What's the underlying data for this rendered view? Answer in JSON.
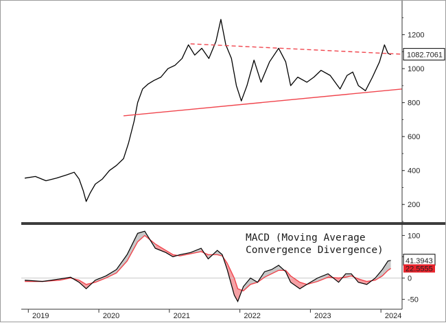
{
  "chart_data": [
    {
      "type": "line",
      "title": "",
      "xlabel": "",
      "ylabel": "",
      "x_ticks": [
        "2019",
        "2020",
        "2021",
        "2022",
        "2023",
        "2024"
      ],
      "y_ticks": [
        "200",
        "400",
        "600",
        "800",
        "1000",
        "1200"
      ],
      "ylim": [
        100,
        1380
      ],
      "last_value_label": "1082.7061",
      "grid": false,
      "series": [
        {
          "color": "#000000",
          "points": [
            [
              2018.95,
              355
            ],
            [
              2019.1,
              365
            ],
            [
              2019.25,
              340
            ],
            [
              2019.4,
              355
            ],
            [
              2019.55,
              375
            ],
            [
              2019.65,
              390
            ],
            [
              2019.72,
              350
            ],
            [
              2019.78,
              280
            ],
            [
              2019.82,
              218
            ],
            [
              2019.88,
              270
            ],
            [
              2019.95,
              320
            ],
            [
              2020.05,
              350
            ],
            [
              2020.15,
              400
            ],
            [
              2020.25,
              430
            ],
            [
              2020.35,
              470
            ],
            [
              2020.42,
              560
            ],
            [
              2020.5,
              690
            ],
            [
              2020.55,
              800
            ],
            [
              2020.62,
              880
            ],
            [
              2020.7,
              910
            ],
            [
              2020.78,
              930
            ],
            [
              2020.88,
              950
            ],
            [
              2020.98,
              1000
            ],
            [
              2021.08,
              1020
            ],
            [
              2021.18,
              1060
            ],
            [
              2021.27,
              1140
            ],
            [
              2021.36,
              1080
            ],
            [
              2021.46,
              1120
            ],
            [
              2021.56,
              1060
            ],
            [
              2021.66,
              1160
            ],
            [
              2021.73,
              1290
            ],
            [
              2021.8,
              1140
            ],
            [
              2021.88,
              1060
            ],
            [
              2021.95,
              900
            ],
            [
              2022.02,
              810
            ],
            [
              2022.1,
              900
            ],
            [
              2022.2,
              1050
            ],
            [
              2022.3,
              920
            ],
            [
              2022.42,
              1040
            ],
            [
              2022.55,
              1120
            ],
            [
              2022.65,
              1040
            ],
            [
              2022.72,
              900
            ],
            [
              2022.82,
              950
            ],
            [
              2022.95,
              920
            ],
            [
              2023.05,
              950
            ],
            [
              2023.15,
              990
            ],
            [
              2023.28,
              960
            ],
            [
              2023.42,
              880
            ],
            [
              2023.52,
              960
            ],
            [
              2023.6,
              980
            ],
            [
              2023.68,
              900
            ],
            [
              2023.78,
              870
            ],
            [
              2023.88,
              950
            ],
            [
              2023.98,
              1040
            ],
            [
              2024.05,
              1140
            ],
            [
              2024.1,
              1090
            ],
            [
              2024.14,
              1082.7
            ]
          ]
        },
        {
          "color": "#f0444c",
          "style": "solid",
          "points": [
            [
              2020.35,
              722
            ],
            [
              2024.3,
              880
            ]
          ]
        },
        {
          "color": "#f0444c",
          "style": "dashed",
          "points": [
            [
              2021.3,
              1146
            ],
            [
              2024.3,
              1085
            ]
          ]
        }
      ]
    },
    {
      "type": "line",
      "title": "",
      "annotation": "MACD (Moving Average\nConvergence Divergence)",
      "y_ticks": [
        "100",
        "50",
        "0",
        "-50"
      ],
      "ylim": [
        -70,
        120
      ],
      "last_value_labels": [
        "41.3943",
        "22.5555"
      ],
      "series": [
        {
          "color": "#000000",
          "points": [
            [
              2018.95,
              -5
            ],
            [
              2019.2,
              -8
            ],
            [
              2019.45,
              -2
            ],
            [
              2019.6,
              2
            ],
            [
              2019.72,
              -10
            ],
            [
              2019.82,
              -25
            ],
            [
              2019.95,
              -5
            ],
            [
              2020.1,
              5
            ],
            [
              2020.25,
              20
            ],
            [
              2020.4,
              55
            ],
            [
              2020.55,
              105
            ],
            [
              2020.65,
              110
            ],
            [
              2020.8,
              70
            ],
            [
              2020.95,
              60
            ],
            [
              2021.05,
              50
            ],
            [
              2021.15,
              55
            ],
            [
              2021.3,
              60
            ],
            [
              2021.45,
              70
            ],
            [
              2021.55,
              45
            ],
            [
              2021.68,
              65
            ],
            [
              2021.75,
              55
            ],
            [
              2021.82,
              20
            ],
            [
              2021.92,
              -40
            ],
            [
              2021.97,
              -55
            ],
            [
              2022.05,
              -20
            ],
            [
              2022.15,
              0
            ],
            [
              2022.25,
              -10
            ],
            [
              2022.35,
              15
            ],
            [
              2022.45,
              20
            ],
            [
              2022.55,
              30
            ],
            [
              2022.65,
              15
            ],
            [
              2022.72,
              -10
            ],
            [
              2022.85,
              -25
            ],
            [
              2022.95,
              -15
            ],
            [
              2023.1,
              0
            ],
            [
              2023.25,
              10
            ],
            [
              2023.4,
              -10
            ],
            [
              2023.5,
              10
            ],
            [
              2023.58,
              10
            ],
            [
              2023.68,
              -10
            ],
            [
              2023.8,
              -15
            ],
            [
              2023.92,
              0
            ],
            [
              2024.02,
              20
            ],
            [
              2024.1,
              40
            ],
            [
              2024.14,
              41.4
            ]
          ]
        },
        {
          "color": "#f0444c",
          "points": [
            [
              2018.95,
              -8
            ],
            [
              2019.2,
              -8
            ],
            [
              2019.45,
              -5
            ],
            [
              2019.6,
              0
            ],
            [
              2019.72,
              -5
            ],
            [
              2019.82,
              -15
            ],
            [
              2019.95,
              -10
            ],
            [
              2020.1,
              0
            ],
            [
              2020.25,
              12
            ],
            [
              2020.4,
              40
            ],
            [
              2020.55,
              85
            ],
            [
              2020.65,
              100
            ],
            [
              2020.8,
              80
            ],
            [
              2020.95,
              65
            ],
            [
              2021.05,
              55
            ],
            [
              2021.15,
              52
            ],
            [
              2021.3,
              57
            ],
            [
              2021.45,
              62
            ],
            [
              2021.55,
              55
            ],
            [
              2021.68,
              55
            ],
            [
              2021.75,
              52
            ],
            [
              2021.82,
              35
            ],
            [
              2021.92,
              0
            ],
            [
              2021.97,
              -25
            ],
            [
              2022.05,
              -30
            ],
            [
              2022.15,
              -15
            ],
            [
              2022.25,
              -10
            ],
            [
              2022.35,
              2
            ],
            [
              2022.45,
              10
            ],
            [
              2022.55,
              18
            ],
            [
              2022.65,
              18
            ],
            [
              2022.72,
              5
            ],
            [
              2022.85,
              -10
            ],
            [
              2022.95,
              -15
            ],
            [
              2023.1,
              -8
            ],
            [
              2023.25,
              2
            ],
            [
              2023.4,
              0
            ],
            [
              2023.5,
              2
            ],
            [
              2023.58,
              5
            ],
            [
              2023.68,
              -2
            ],
            [
              2023.8,
              -8
            ],
            [
              2023.92,
              -5
            ],
            [
              2024.02,
              5
            ],
            [
              2024.1,
              18
            ],
            [
              2024.14,
              22.6
            ]
          ]
        }
      ]
    }
  ]
}
